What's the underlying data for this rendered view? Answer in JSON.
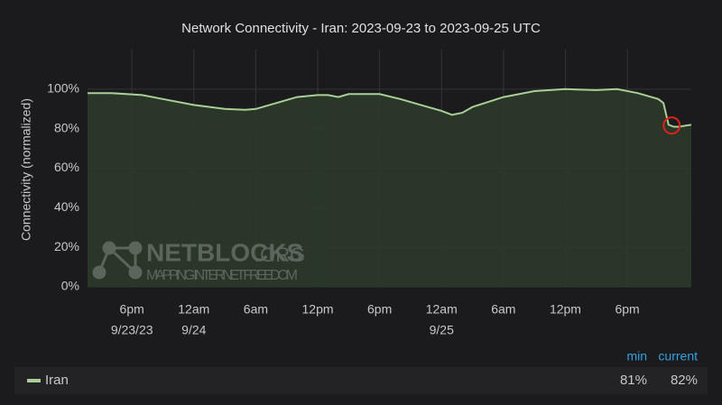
{
  "chart_data": {
    "type": "area",
    "title": "Network Connectivity - Iran: 2023-09-23 to 2023-09-25 UTC",
    "y_label": "Connectivity (normalized)",
    "x": [
      13.7,
      16,
      19,
      21,
      24,
      27,
      29,
      30,
      32,
      34,
      36,
      37,
      38,
      39,
      42,
      44,
      46,
      48,
      49,
      50,
      51,
      54,
      57,
      60,
      63,
      65,
      67,
      69,
      69.5,
      70,
      70.5,
      71,
      72.2
    ],
    "series": [
      {
        "name": "Iran",
        "color": "#a9cf96",
        "fill": "#2b3a2a",
        "values": [
          98,
          98,
          97,
          95,
          92,
          90,
          89.5,
          90,
          93,
          96,
          97,
          97,
          96,
          97.5,
          97.5,
          95,
          92,
          89,
          87,
          88,
          91,
          96,
          99,
          100,
          99.5,
          100,
          98,
          95,
          93,
          82,
          81,
          81,
          82
        ]
      }
    ],
    "xlim": [
      13.7,
      72.2
    ],
    "xticks": [
      {
        "value": 18,
        "label": "6pm",
        "date": "9/23/23"
      },
      {
        "value": 24,
        "label": "12am",
        "date": "9/24"
      },
      {
        "value": 30,
        "label": "6am"
      },
      {
        "value": 36,
        "label": "12pm"
      },
      {
        "value": 42,
        "label": "6pm"
      },
      {
        "value": 48,
        "label": "12am",
        "date": "9/25"
      },
      {
        "value": 54,
        "label": "6am"
      },
      {
        "value": 60,
        "label": "12pm"
      },
      {
        "value": 66,
        "label": "6pm"
      }
    ],
    "ylim": [
      0,
      120
    ],
    "yticks": [
      {
        "value": 0,
        "label": "0%"
      },
      {
        "value": 20,
        "label": "20%"
      },
      {
        "value": 40,
        "label": "40%"
      },
      {
        "value": 60,
        "label": "60%"
      },
      {
        "value": 80,
        "label": "80%"
      },
      {
        "value": 100,
        "label": "100%"
      }
    ],
    "grid": true,
    "highlight": {
      "x": 70.3,
      "y": 81.6,
      "color": "#e0201c"
    },
    "watermark": {
      "title": "NETBLOCKS",
      "suffix": ".ORG",
      "tagline": "MAPPING INTERNET FREEDOM"
    },
    "legend_stats": {
      "headers": [
        "min",
        "current"
      ],
      "values": [
        81,
        82
      ],
      "value_labels": [
        "81%",
        "82%"
      ]
    }
  }
}
